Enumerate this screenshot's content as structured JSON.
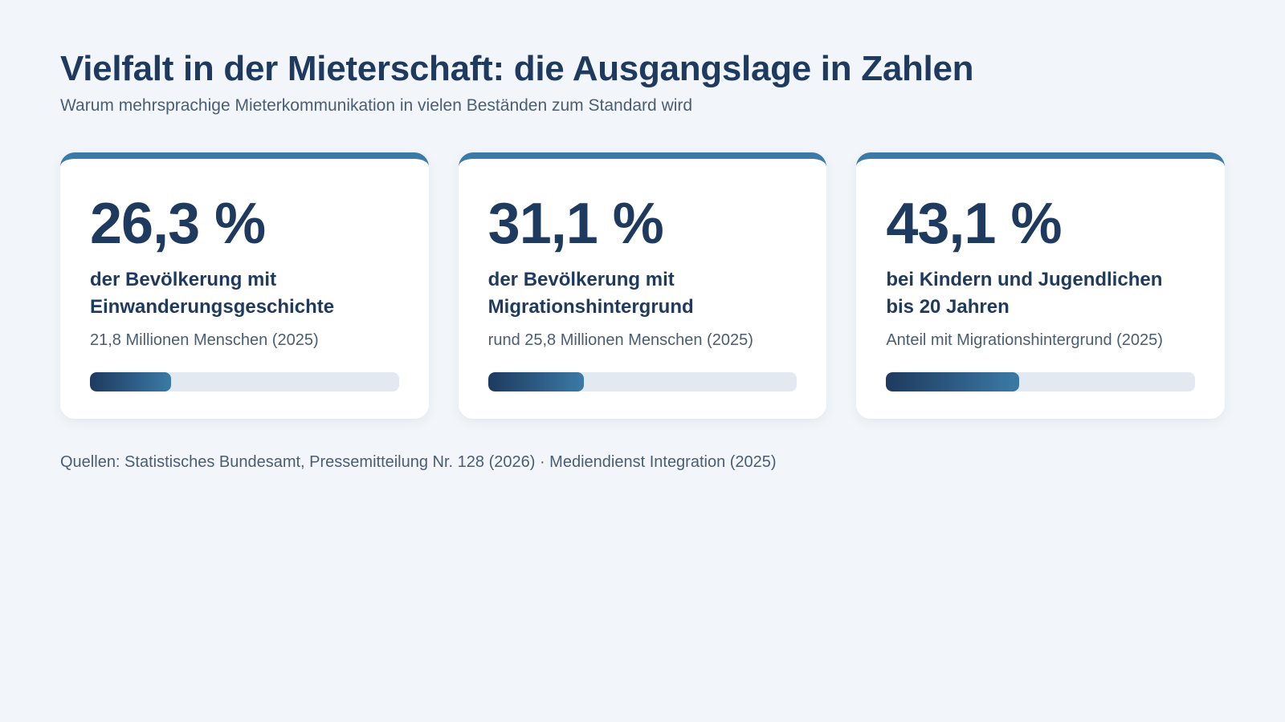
{
  "header": {
    "title": "Vielfalt in der Mieterschaft: die Ausgangslage in Zahlen",
    "subtitle": "Warum mehrsprachige Mieterkommunikation in vielen Beständen zum Standard wird"
  },
  "cards": [
    {
      "value": "26,3 %",
      "label": "der Bevölkerung mit Einwanderungsgeschichte",
      "note": "21,8 Millionen Menschen (2025)",
      "percent": 26.3
    },
    {
      "value": "31,1 %",
      "label": "der Bevölkerung mit Migrationshintergrund",
      "note": "rund 25,8 Millionen Menschen (2025)",
      "percent": 31.1
    },
    {
      "value": "43,1 %",
      "label": "bei Kindern und Jugendlichen bis 20 Jahren",
      "note": "Anteil mit Migrationshintergrund (2025)",
      "percent": 43.1
    }
  ],
  "footer": {
    "sources": "Quellen: Statistisches Bundesamt, Pressemitteilung Nr. 128 (2026) · Mediendienst Integration (2025)"
  },
  "colors": {
    "accent": "#3b7aa6",
    "primary": "#1e3a5f",
    "background": "#f2f6fa",
    "track": "#e3e9f0"
  }
}
